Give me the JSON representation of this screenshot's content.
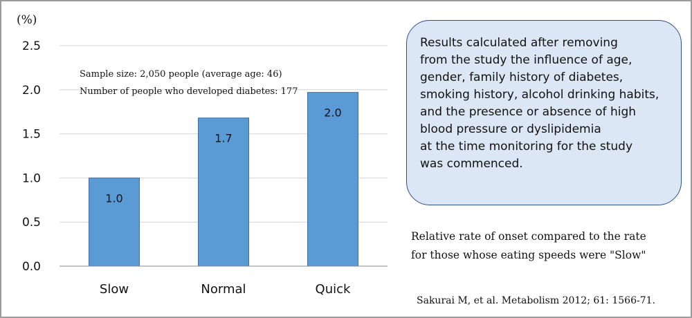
{
  "chart_data": {
    "type": "bar",
    "unit_label": "(%)",
    "categories": [
      "Slow",
      "Normal",
      "Quick"
    ],
    "values": [
      1.0,
      1.68,
      1.97
    ],
    "data_labels": [
      "1.0",
      "1.7",
      "2.0"
    ],
    "yticks": [
      "2.5",
      "2.0",
      "1.5",
      "1.0",
      "0.5",
      "0.0"
    ],
    "ylim": [
      0,
      2.5
    ],
    "grid": true,
    "bar_color": "#5b9bd5",
    "bar_edge_color": "#3f6ea8",
    "annotations": [
      "Sample size: 2,050 people (average age: 46)",
      "Number of people who developed diabetes: 177"
    ]
  },
  "note_box": {
    "lines": [
      "Results calculated after removing",
      "from the study the influence of age,",
      "gender, family history of diabetes,",
      "smoking history, alcohol drinking habits,",
      "and the presence or absence of high",
      "blood pressure or dyslipidemia",
      "at the time monitoring for the study",
      "was commenced."
    ],
    "fill_color": "#dbe7f4",
    "border_color": "#2f4f88"
  },
  "caption_lines": [
    "Relative rate of onset compared to the rate",
    "for those whose eating speeds were \"Slow\""
  ],
  "citation": "Sakurai M, et al. Metabolism 2012; 61: 1566-71."
}
